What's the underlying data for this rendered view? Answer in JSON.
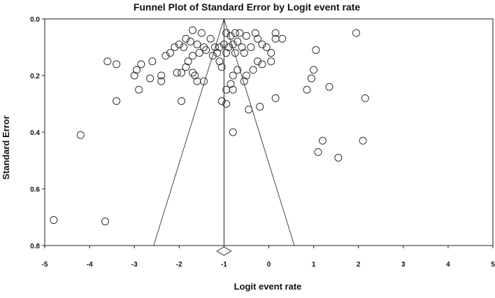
{
  "chart_data": {
    "type": "scatter",
    "title": "Funnel Plot of Standard Error by Logit event rate",
    "xlabel": "Logit event rate",
    "ylabel": "Standard Error",
    "xlim": [
      -5,
      5
    ],
    "ylim": [
      0.0,
      0.8
    ],
    "y_inverted": true,
    "x_ticks": [
      -5,
      -4,
      -3,
      -2,
      -1,
      0,
      1,
      2,
      3,
      4,
      5
    ],
    "x_tick_labels": [
      "-5",
      "-4",
      "-3",
      "-2",
      "-1",
      "0",
      "1",
      "2",
      "3",
      "4",
      "5"
    ],
    "y_ticks": [
      0.0,
      0.2,
      0.4,
      0.6,
      0.8
    ],
    "y_tick_labels": [
      "0.0",
      "0.2",
      "0.4",
      "0.6",
      "0.8"
    ],
    "grid": false,
    "pooled_estimate": -1.0,
    "funnel_lines": [
      {
        "x": [
          -1.0,
          -2.57
        ],
        "y": [
          0.0,
          0.8
        ]
      },
      {
        "x": [
          -1.0,
          0.57
        ],
        "y": [
          0.0,
          0.8
        ]
      }
    ],
    "summary_diamond": {
      "center": -1.0,
      "lower": -1.16,
      "upper": -0.84
    },
    "points": [
      {
        "x": -1.7,
        "y": 0.04
      },
      {
        "x": -1.5,
        "y": 0.05
      },
      {
        "x": -1.85,
        "y": 0.07
      },
      {
        "x": -1.75,
        "y": 0.08
      },
      {
        "x": -2.0,
        "y": 0.09
      },
      {
        "x": -1.9,
        "y": 0.1
      },
      {
        "x": -2.1,
        "y": 0.1
      },
      {
        "x": -1.6,
        "y": 0.09
      },
      {
        "x": -1.45,
        "y": 0.1
      },
      {
        "x": -1.3,
        "y": 0.07
      },
      {
        "x": -1.2,
        "y": 0.1
      },
      {
        "x": -1.1,
        "y": 0.1
      },
      {
        "x": -0.95,
        "y": 0.05
      },
      {
        "x": -0.85,
        "y": 0.06
      },
      {
        "x": -0.75,
        "y": 0.05
      },
      {
        "x": -0.65,
        "y": 0.05
      },
      {
        "x": -0.5,
        "y": 0.06
      },
      {
        "x": -0.3,
        "y": 0.05
      },
      {
        "x": -0.25,
        "y": 0.07
      },
      {
        "x": -0.15,
        "y": 0.09
      },
      {
        "x": -0.05,
        "y": 0.1
      },
      {
        "x": 0.15,
        "y": 0.05
      },
      {
        "x": 0.15,
        "y": 0.07
      },
      {
        "x": 0.3,
        "y": 0.07
      },
      {
        "x": 1.95,
        "y": 0.05
      },
      {
        "x": 1.05,
        "y": 0.11
      },
      {
        "x": -1.0,
        "y": 0.09
      },
      {
        "x": -0.9,
        "y": 0.1
      },
      {
        "x": -0.8,
        "y": 0.09
      },
      {
        "x": -0.7,
        "y": 0.08
      },
      {
        "x": -0.6,
        "y": 0.1
      },
      {
        "x": -0.4,
        "y": 0.1
      },
      {
        "x": 0.05,
        "y": 0.12
      },
      {
        "x": -0.55,
        "y": 0.12
      },
      {
        "x": -0.75,
        "y": 0.12
      },
      {
        "x": -0.95,
        "y": 0.12
      },
      {
        "x": -1.15,
        "y": 0.12
      },
      {
        "x": -1.25,
        "y": 0.13
      },
      {
        "x": -1.4,
        "y": 0.11
      },
      {
        "x": -1.55,
        "y": 0.12
      },
      {
        "x": -1.7,
        "y": 0.13
      },
      {
        "x": -1.8,
        "y": 0.15
      },
      {
        "x": -1.85,
        "y": 0.17
      },
      {
        "x": -1.95,
        "y": 0.19
      },
      {
        "x": -2.2,
        "y": 0.12
      },
      {
        "x": -2.3,
        "y": 0.13
      },
      {
        "x": -2.6,
        "y": 0.15
      },
      {
        "x": -2.85,
        "y": 0.16
      },
      {
        "x": -2.95,
        "y": 0.18
      },
      {
        "x": -3.0,
        "y": 0.2
      },
      {
        "x": -3.6,
        "y": 0.15
      },
      {
        "x": -3.4,
        "y": 0.16
      },
      {
        "x": -2.65,
        "y": 0.21
      },
      {
        "x": -2.4,
        "y": 0.2
      },
      {
        "x": -2.4,
        "y": 0.22
      },
      {
        "x": -2.05,
        "y": 0.19
      },
      {
        "x": -1.65,
        "y": 0.2
      },
      {
        "x": -1.6,
        "y": 0.22
      },
      {
        "x": -1.45,
        "y": 0.22
      },
      {
        "x": -1.7,
        "y": 0.19
      },
      {
        "x": -1.1,
        "y": 0.15
      },
      {
        "x": -1.05,
        "y": 0.17
      },
      {
        "x": -0.8,
        "y": 0.2
      },
      {
        "x": -0.7,
        "y": 0.18
      },
      {
        "x": -0.5,
        "y": 0.2
      },
      {
        "x": -0.55,
        "y": 0.22
      },
      {
        "x": -0.35,
        "y": 0.18
      },
      {
        "x": -0.25,
        "y": 0.15
      },
      {
        "x": -0.15,
        "y": 0.16
      },
      {
        "x": 0.05,
        "y": 0.15
      },
      {
        "x": 1.0,
        "y": 0.18
      },
      {
        "x": 0.95,
        "y": 0.21
      },
      {
        "x": -0.85,
        "y": 0.23
      },
      {
        "x": -0.8,
        "y": 0.25
      },
      {
        "x": -0.95,
        "y": 0.25
      },
      {
        "x": -1.05,
        "y": 0.29
      },
      {
        "x": -0.95,
        "y": 0.3
      },
      {
        "x": 0.85,
        "y": 0.25
      },
      {
        "x": 1.35,
        "y": 0.24
      },
      {
        "x": 2.15,
        "y": 0.28
      },
      {
        "x": 0.15,
        "y": 0.28
      },
      {
        "x": -2.9,
        "y": 0.25
      },
      {
        "x": -3.4,
        "y": 0.29
      },
      {
        "x": -1.95,
        "y": 0.29
      },
      {
        "x": -0.45,
        "y": 0.32
      },
      {
        "x": -0.2,
        "y": 0.31
      },
      {
        "x": -0.8,
        "y": 0.4
      },
      {
        "x": -4.2,
        "y": 0.41
      },
      {
        "x": 1.2,
        "y": 0.43
      },
      {
        "x": 1.1,
        "y": 0.47
      },
      {
        "x": 2.1,
        "y": 0.43
      },
      {
        "x": 1.55,
        "y": 0.49
      },
      {
        "x": -4.8,
        "y": 0.71
      },
      {
        "x": -3.65,
        "y": 0.715
      }
    ]
  }
}
